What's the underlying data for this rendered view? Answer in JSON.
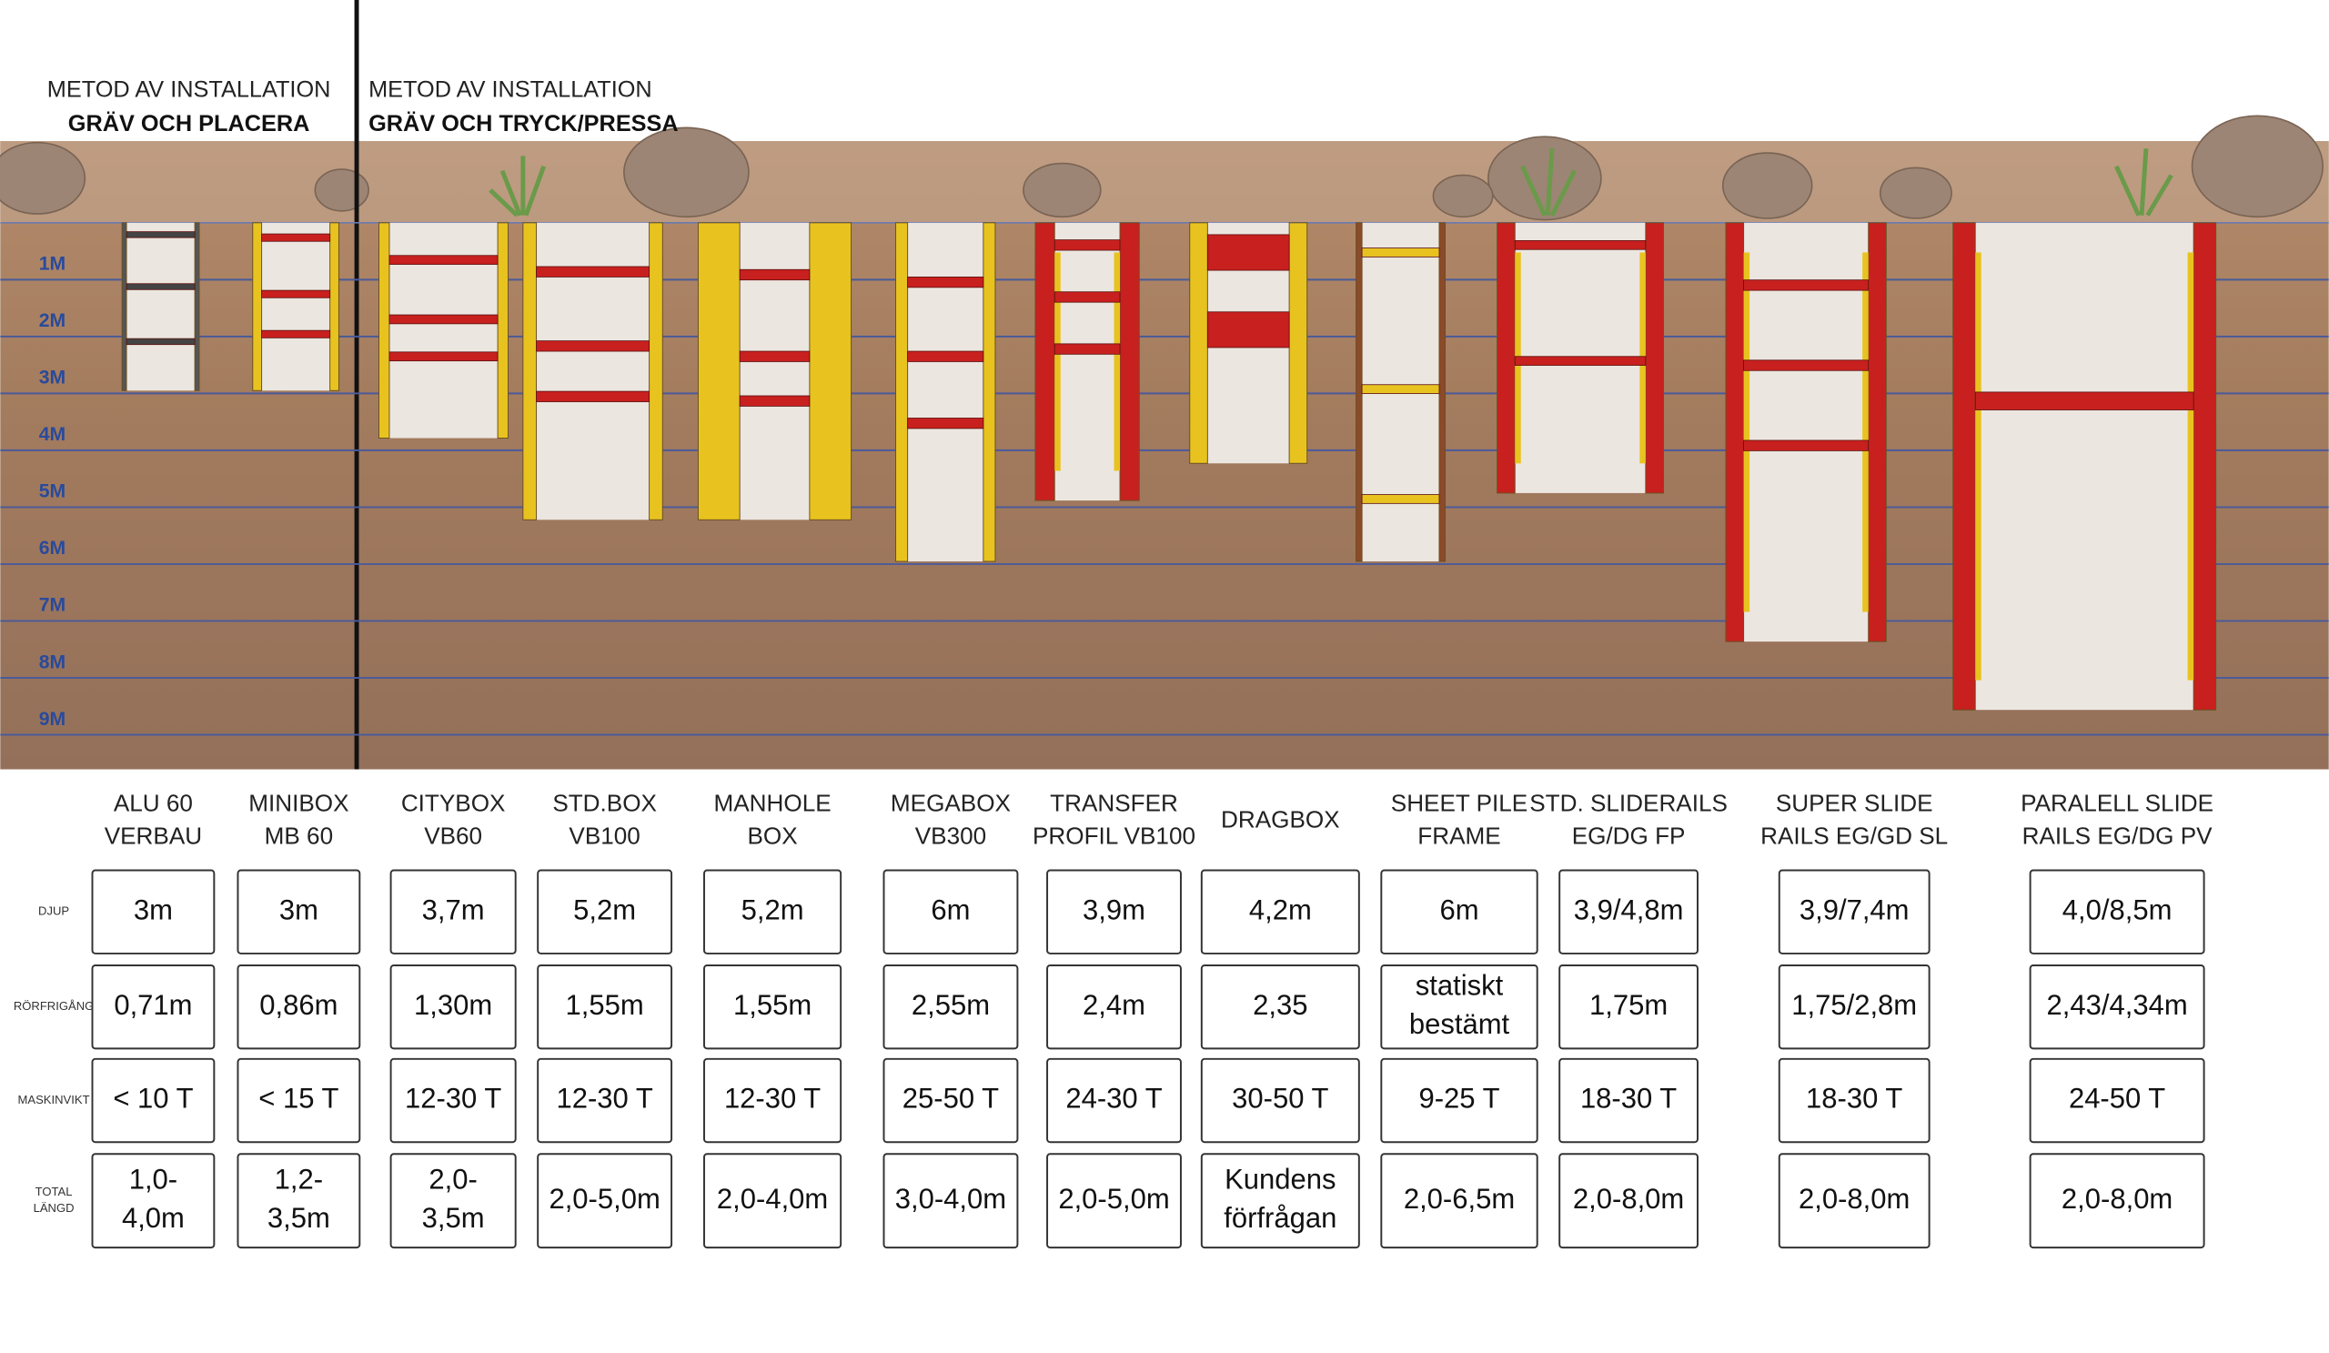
{
  "header": {
    "methods": [
      {
        "label": "METOD AV INSTALLATION",
        "name": "GRÄV OCH PLACERA"
      },
      {
        "label": "METOD AV INSTALLATION",
        "name": "GRÄV OCH TRYCK/PRESSA"
      }
    ]
  },
  "depth_scale": [
    "1M",
    "2M",
    "3M",
    "4M",
    "5M",
    "6M",
    "7M",
    "8M",
    "9M"
  ],
  "row_labels": [
    "DJUP",
    "RÖRFRIGÅNG",
    "MASKINVIKT",
    [
      "TOTAL",
      "LÄNGD"
    ]
  ],
  "products": [
    {
      "name": [
        "ALU 60",
        "VERBAU"
      ],
      "specs": [
        "3m",
        "0,71m",
        "< 10 T",
        [
          "1,0-",
          "4,0m"
        ]
      ]
    },
    {
      "name": [
        "MINIBOX",
        "MB 60"
      ],
      "specs": [
        "3m",
        "0,86m",
        "< 15 T",
        [
          "1,2-",
          "3,5m"
        ]
      ]
    },
    {
      "name": [
        "CITYBOX",
        "VB60"
      ],
      "specs": [
        "3,7m",
        "1,30m",
        "12-30 T",
        [
          "2,0-",
          "3,5m"
        ]
      ]
    },
    {
      "name": [
        "STD.BOX",
        "VB100"
      ],
      "specs": [
        "5,2m",
        "1,55m",
        "12-30 T",
        "2,0-5,0m"
      ]
    },
    {
      "name": [
        "MANHOLE",
        "BOX"
      ],
      "specs": [
        "5,2m",
        "1,55m",
        "12-30 T",
        "2,0-4,0m"
      ]
    },
    {
      "name": [
        "MEGABOX",
        "VB300"
      ],
      "specs": [
        "6m",
        "2,55m",
        "25-50 T",
        "3,0-4,0m"
      ]
    },
    {
      "name": [
        "TRANSFER",
        "PROFIL VB100"
      ],
      "specs": [
        "3,9m",
        "2,4m",
        "24-30 T",
        "2,0-5,0m"
      ]
    },
    {
      "name": [
        "DRAGBOX"
      ],
      "specs": [
        "4,2m",
        "2,35",
        "30-50 T",
        [
          "Kundens",
          "förfrågan"
        ]
      ]
    },
    {
      "name": [
        "SHEET PILE",
        "FRAME"
      ],
      "specs": [
        "6m",
        [
          "statiskt",
          "bestämt"
        ],
        "9-25 T",
        "2,0-6,5m"
      ]
    },
    {
      "name": [
        "STD. SLIDERAILS",
        "EG/DG FP"
      ],
      "specs": [
        "3,9/4,8m",
        "1,75m",
        "18-30 T",
        "2,0-8,0m"
      ]
    },
    {
      "name": [
        "SUPER SLIDE",
        "RAILS EG/GD SL"
      ],
      "specs": [
        "3,9/7,4m",
        "1,75/2,8m",
        "18-30 T",
        "2,0-8,0m"
      ]
    },
    {
      "name": [
        "PARALELL SLIDE",
        "RAILS EG/DG PV"
      ],
      "specs": [
        "4,0/8,5m",
        "2,43/4,34m",
        "24-50 T",
        "2,0-8,0m"
      ]
    }
  ]
}
